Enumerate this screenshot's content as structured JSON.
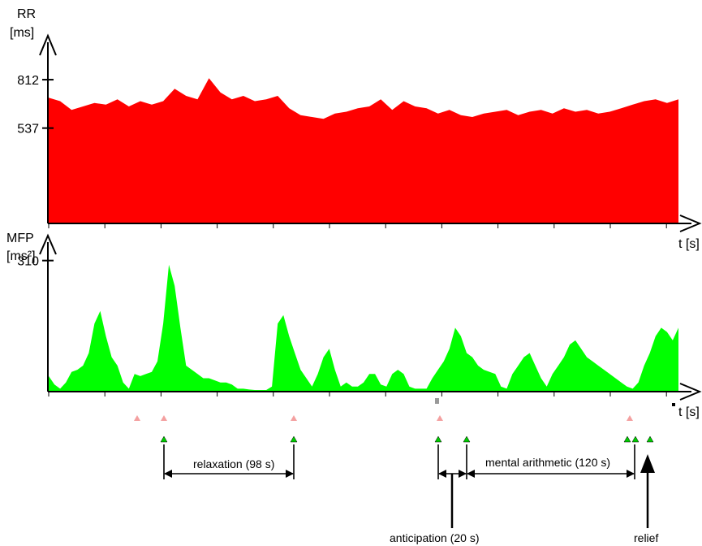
{
  "chart_data": [
    {
      "type": "area",
      "ylabel_line1": "RR",
      "ylabel_line2": "[ms]",
      "xlabel": "t [s]",
      "yticks": [
        537,
        812
      ],
      "ytick_labels": [
        "537",
        "812"
      ],
      "ylim": [
        0,
        1080
      ],
      "xlim": [
        0,
        440
      ],
      "grid": false,
      "color": "#ff0000",
      "x": [
        0,
        8,
        16,
        24,
        32,
        40,
        48,
        56,
        64,
        72,
        80,
        88,
        96,
        104,
        112,
        120,
        128,
        136,
        144,
        152,
        160,
        168,
        176,
        184,
        192,
        200,
        208,
        216,
        224,
        232,
        240,
        248,
        256,
        264,
        272,
        280,
        288,
        296,
        304,
        312,
        320,
        328,
        336,
        344,
        352,
        360,
        368,
        376,
        384,
        392,
        400,
        408,
        416,
        424,
        432,
        440
      ],
      "values": [
        710,
        690,
        640,
        660,
        680,
        670,
        700,
        660,
        690,
        670,
        690,
        760,
        720,
        700,
        820,
        740,
        700,
        720,
        690,
        700,
        720,
        650,
        610,
        600,
        590,
        620,
        630,
        650,
        660,
        700,
        640,
        690,
        660,
        650,
        620,
        640,
        610,
        600,
        620,
        630,
        640,
        610,
        630,
        640,
        620,
        650,
        630,
        640,
        620,
        630,
        650,
        670,
        690,
        700,
        680,
        700
      ]
    },
    {
      "type": "area",
      "ylabel_line1": "MFP",
      "ylabel_line2": "[ms²]",
      "xlabel": "t [s]",
      "yticks": [
        310
      ],
      "ytick_labels": [
        "310"
      ],
      "ylim": [
        0,
        350
      ],
      "xlim": [
        0,
        440
      ],
      "grid": false,
      "color": "#00ff00",
      "x": [
        0,
        4,
        8,
        12,
        16,
        20,
        24,
        28,
        32,
        36,
        40,
        44,
        48,
        52,
        56,
        60,
        64,
        68,
        72,
        76,
        80,
        84,
        88,
        92,
        96,
        100,
        104,
        108,
        112,
        116,
        120,
        124,
        128,
        132,
        136,
        140,
        144,
        148,
        152,
        156,
        160,
        164,
        168,
        172,
        176,
        180,
        184,
        188,
        192,
        196,
        200,
        204,
        208,
        212,
        216,
        220,
        224,
        228,
        232,
        236,
        240,
        244,
        248,
        252,
        256,
        260,
        264,
        268,
        272,
        276,
        280,
        284,
        288,
        292,
        296,
        300,
        304,
        312,
        316,
        320,
        324,
        328,
        332,
        336,
        340,
        344,
        348,
        352,
        356,
        360,
        364,
        368,
        372,
        376,
        380,
        384,
        388,
        392,
        396,
        400,
        404,
        408,
        412,
        416,
        420,
        424,
        428,
        432,
        436,
        440
      ],
      "values": [
        35,
        15,
        5,
        20,
        45,
        50,
        60,
        90,
        160,
        190,
        130,
        80,
        60,
        20,
        5,
        40,
        35,
        40,
        45,
        70,
        160,
        300,
        250,
        150,
        60,
        50,
        40,
        30,
        30,
        25,
        20,
        20,
        15,
        5,
        5,
        3,
        2,
        2,
        2,
        10,
        160,
        180,
        130,
        90,
        50,
        30,
        10,
        40,
        80,
        100,
        50,
        10,
        20,
        10,
        10,
        20,
        40,
        40,
        15,
        10,
        40,
        50,
        40,
        10,
        5,
        5,
        5,
        30,
        50,
        70,
        100,
        150,
        130,
        90,
        80,
        60,
        50,
        40,
        10,
        5,
        40,
        60,
        80,
        90,
        60,
        30,
        10,
        40,
        60,
        80,
        110,
        120,
        100,
        80,
        70,
        60,
        50,
        40,
        30,
        20,
        10,
        5,
        20,
        60,
        90,
        130,
        150,
        140,
        120,
        150
      ]
    }
  ],
  "markers": {
    "labels": {
      "relaxation": "relaxation (98 s)",
      "mental": "mental arithmetic (120 s)",
      "anticipation": "anticipation (20 s)",
      "relief": "relief"
    }
  }
}
